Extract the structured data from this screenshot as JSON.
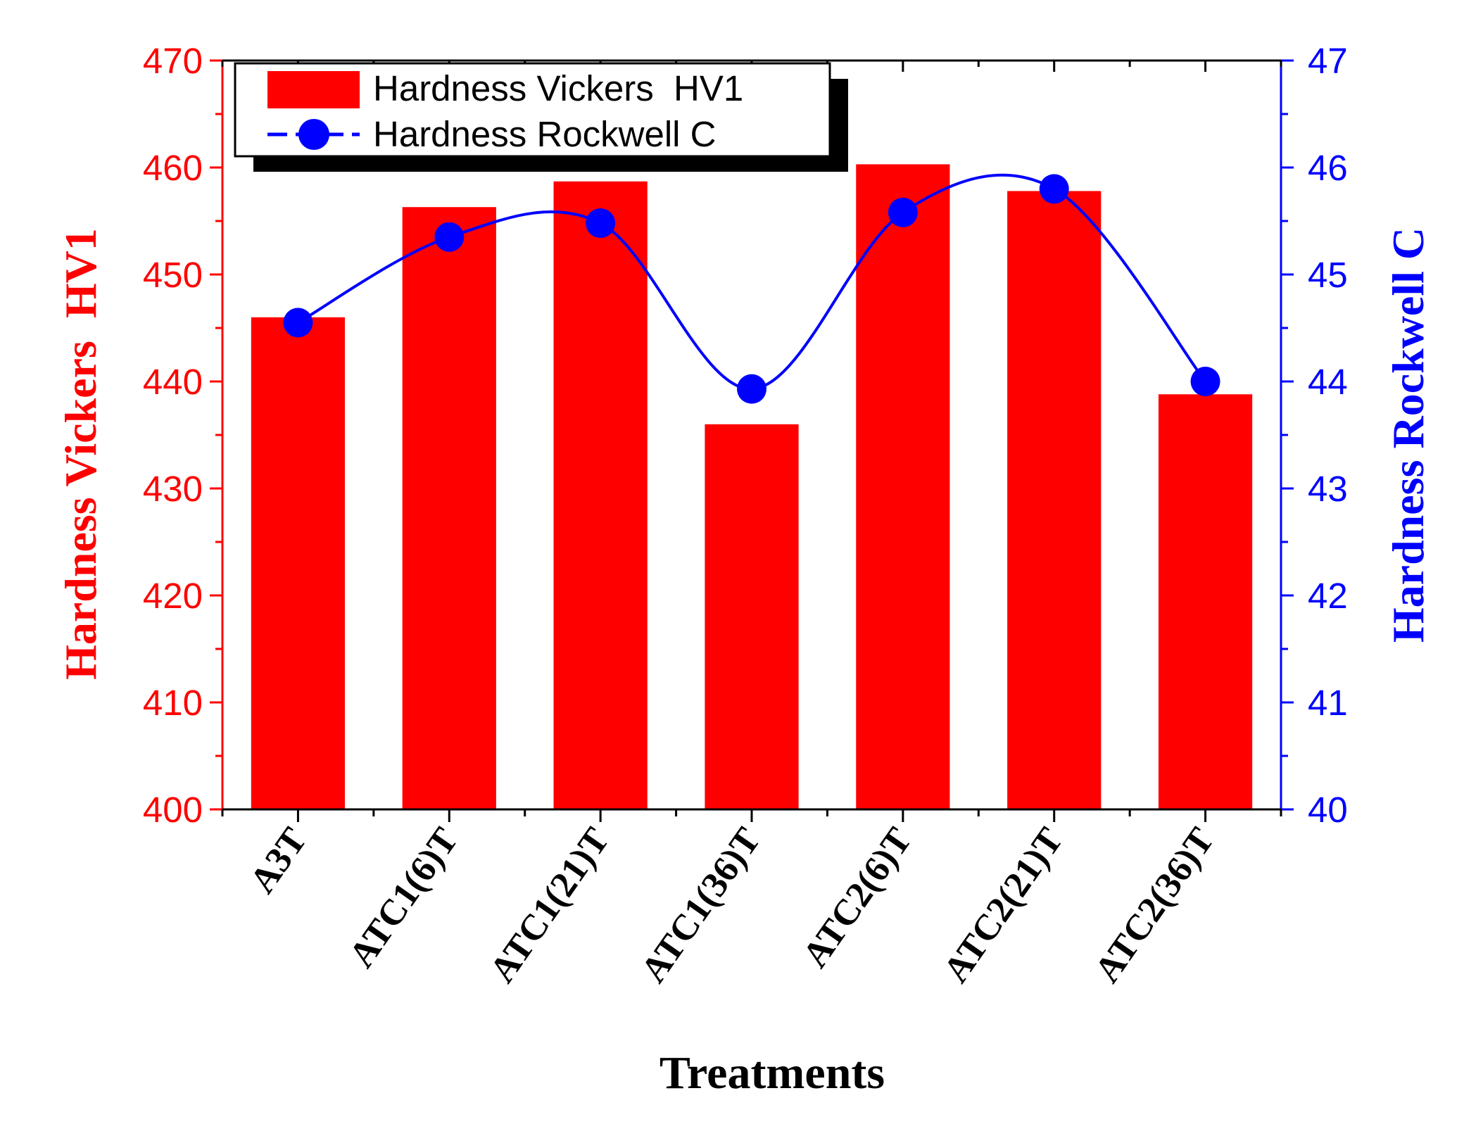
{
  "chart_data": {
    "type": "bar",
    "categories": [
      "A3T",
      "ATC1(6)T",
      "ATC1(21)T",
      "ATC1(36)T",
      "ATC2(6)T",
      "ATC2(21)T",
      "ATC2(36)T"
    ],
    "series": [
      {
        "name": "Hardness Vickers  HV1",
        "type": "bar",
        "axis": "left",
        "color": "#ff0000",
        "values": [
          446,
          456.3,
          458.7,
          436,
          460.3,
          457.8,
          438.8
        ]
      },
      {
        "name": "Hardness Rockwell C",
        "type": "line",
        "axis": "right",
        "color": "#0000ff",
        "marker_color": "#0000ff",
        "values": [
          44.55,
          45.35,
          45.48,
          43.93,
          45.58,
          45.8,
          44.0
        ]
      }
    ],
    "xlabel": "Treatments",
    "ylabel_left": "Hardness Vickers  HV1",
    "ylabel_right": "Hardness Rockwell C",
    "ylim_left": [
      400,
      470
    ],
    "yticks_left": [
      400,
      410,
      420,
      430,
      440,
      450,
      460,
      470
    ],
    "ylim_right": [
      40,
      47
    ],
    "yticks_right": [
      40,
      41,
      42,
      43,
      44,
      45,
      46,
      47
    ],
    "left_axis_color": "#ff0000",
    "right_axis_color": "#0000ff",
    "legend_position": "top-left",
    "grid": false
  }
}
